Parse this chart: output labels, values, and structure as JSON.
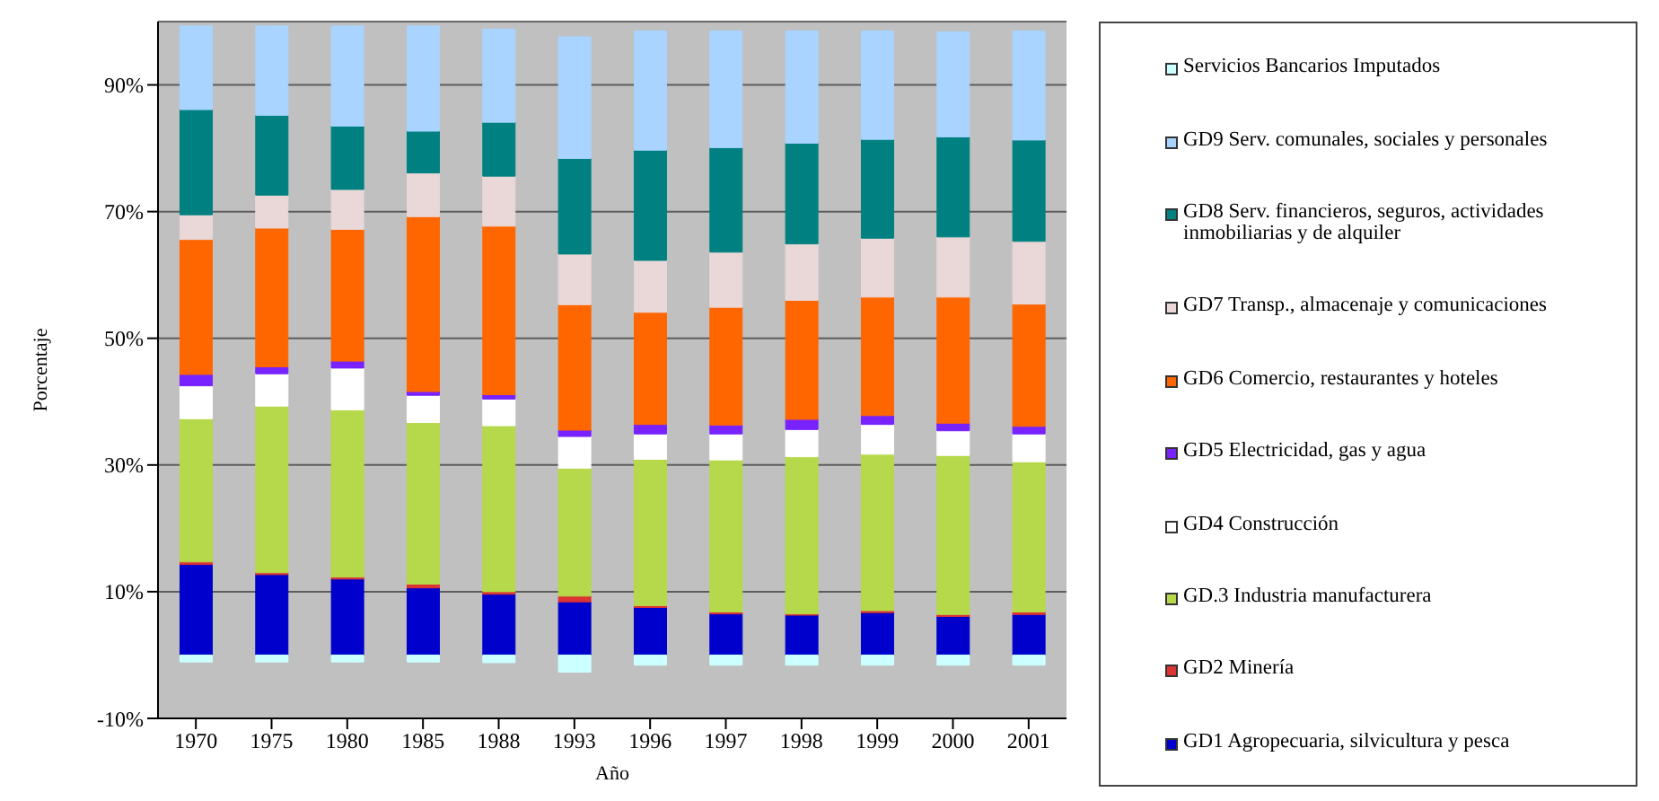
{
  "chart_data": {
    "type": "bar",
    "stacked": true,
    "xlabel": "Año",
    "ylabel": "Porcentaje",
    "categories": [
      "1970",
      "1975",
      "1980",
      "1985",
      "1988",
      "1993",
      "1996",
      "1997",
      "1998",
      "1999",
      "2000",
      "2001"
    ],
    "ylim": [
      -10,
      100
    ],
    "yticks": [
      {
        "value": -10,
        "label": "-10%"
      },
      {
        "value": 10,
        "label": "10%"
      },
      {
        "value": 30,
        "label": "30%"
      },
      {
        "value": 50,
        "label": "50%"
      },
      {
        "value": 70,
        "label": "70%"
      },
      {
        "value": 90,
        "label": "90%"
      }
    ],
    "grid": "y",
    "legend": "right",
    "series": [
      {
        "name": "GD1 Agropecuaria, silvicultura y pesca",
        "color": "#0000cc",
        "values": [
          14.3,
          12.7,
          12.0,
          10.6,
          9.6,
          8.4,
          7.5,
          6.5,
          6.3,
          6.7,
          6.1,
          6.4
        ]
      },
      {
        "name": "GD2 Minería",
        "color": "#dd3333",
        "values": [
          0.4,
          0.3,
          0.3,
          0.6,
          0.4,
          0.9,
          0.3,
          0.3,
          0.2,
          0.3,
          0.3,
          0.4
        ]
      },
      {
        "name": "GD.3 Industria manufacturera",
        "color": "#b5d94a",
        "values": [
          22.6,
          26.3,
          26.4,
          25.5,
          26.2,
          20.2,
          23.1,
          24.0,
          24.8,
          24.7,
          25.1,
          23.7
        ]
      },
      {
        "name": "GD4 Construcción",
        "color": "#ffffff",
        "values": [
          5.2,
          5.1,
          6.6,
          4.3,
          4.2,
          5.0,
          4.0,
          4.1,
          4.3,
          4.7,
          3.9,
          4.4
        ]
      },
      {
        "name": "GD5 Electricidad, gas y agua",
        "color": "#7722ff",
        "values": [
          1.8,
          1.1,
          1.1,
          0.6,
          0.7,
          1.0,
          1.5,
          1.4,
          1.6,
          1.4,
          1.2,
          1.2
        ]
      },
      {
        "name": "GD6 Comercio, restaurantes y hoteles",
        "color": "#ff6600",
        "values": [
          21.3,
          21.9,
          20.8,
          27.6,
          26.6,
          19.8,
          17.7,
          18.6,
          18.8,
          18.7,
          19.9,
          19.3
        ]
      },
      {
        "name": "GD7 Transp., almacenaje y comunicaciones",
        "color": "#ead8d8",
        "values": [
          3.9,
          5.2,
          6.3,
          6.9,
          7.9,
          8.0,
          8.2,
          8.7,
          8.9,
          9.3,
          9.5,
          9.9
        ]
      },
      {
        "name": "GD8 Serv. financieros, seguros, actividades inmobiliarias y de alquiler",
        "color": "#008080",
        "values": [
          16.6,
          12.6,
          10.0,
          6.6,
          8.5,
          15.1,
          17.4,
          16.5,
          15.9,
          15.6,
          15.8,
          16.0
        ]
      },
      {
        "name": "GD9 Serv. comunales, sociales y personales",
        "color": "#a8d4ff",
        "values": [
          13.2,
          14.1,
          15.8,
          16.6,
          14.7,
          19.2,
          18.8,
          18.4,
          17.7,
          17.1,
          16.6,
          17.2
        ]
      },
      {
        "name": "Servicios Bancarios Imputados",
        "color": "#ccffff",
        "values": [
          -1.1,
          -1.1,
          -1.1,
          -1.1,
          -1.2,
          -2.7,
          -1.6,
          -1.6,
          -1.6,
          -1.6,
          -1.6,
          -1.6
        ]
      }
    ]
  }
}
